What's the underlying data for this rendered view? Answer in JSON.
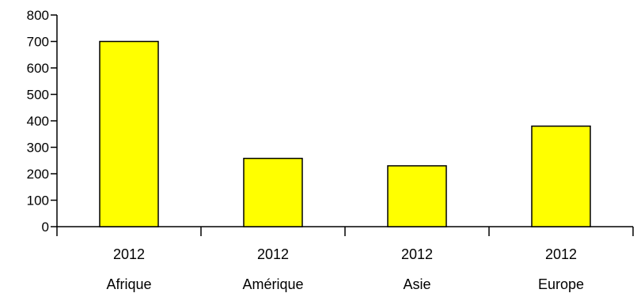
{
  "chart_data": {
    "type": "bar",
    "categories": [
      "Afrique",
      "Amérique",
      "Asie",
      "Europe"
    ],
    "sublabels": [
      "2012",
      "2012",
      "2012",
      "2012"
    ],
    "values": [
      700,
      258,
      230,
      380
    ],
    "title": "",
    "xlabel": "",
    "ylabel": "",
    "ylim": [
      0,
      800
    ],
    "yticks": [
      0,
      100,
      200,
      300,
      400,
      500,
      600,
      700,
      800
    ],
    "bar_color": "#ffff00",
    "bar_edge_color": "#000000",
    "grid": false,
    "legend": "none"
  }
}
